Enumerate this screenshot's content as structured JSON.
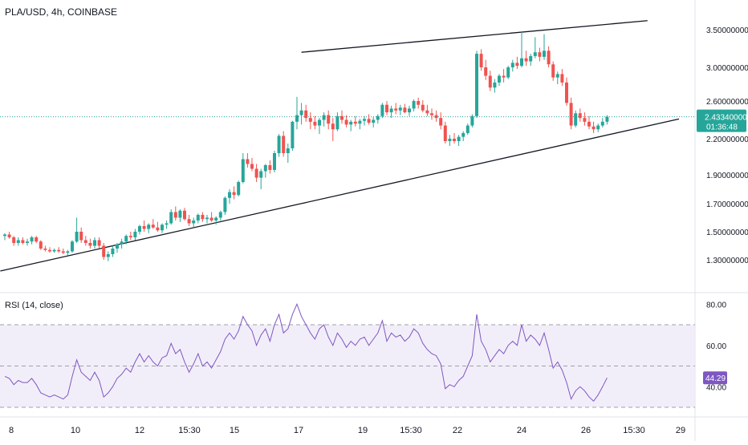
{
  "header": {
    "symbol_title": "PLA/USD, 4h, COINBASE"
  },
  "rsi": {
    "title": "RSI (14, close)",
    "axis_labels": [
      "80.00",
      "60.00",
      "40.00"
    ],
    "current_label": "44.29",
    "current_value": 44.29,
    "upper_band": 70,
    "middle_band": 50,
    "lower_band": 30,
    "line_color": "#7e57c2",
    "band_fill": "#ede7f6"
  },
  "price_badge": {
    "price": "2.43340000",
    "countdown": "01:36:48"
  },
  "colors": {
    "up": "#26a69a",
    "down": "#ef5350",
    "last_line": "#26a69a"
  },
  "chart_data": {
    "type": "candlestick",
    "title": "PLA/USD, 4h, COINBASE",
    "price_ticks": [
      3.5,
      3.0,
      2.6,
      2.2,
      1.9,
      1.7,
      1.5,
      1.3
    ],
    "price_tick_labels": [
      "3.50000000",
      "3.00000000",
      "2.60000000",
      "2.20000000",
      "1.90000000",
      "1.70000000",
      "1.50000000",
      "1.30000000"
    ],
    "time_labels": [
      "8",
      "10",
      "12",
      "15:30",
      "15",
      "17",
      "19",
      "15:30",
      "22",
      "24",
      "26",
      "15:30",
      "29"
    ],
    "last_price": 2.4334,
    "ohlc": [
      [
        1.47,
        1.49,
        1.44,
        1.48
      ],
      [
        1.48,
        1.5,
        1.45,
        1.46
      ],
      [
        1.46,
        1.47,
        1.4,
        1.42
      ],
      [
        1.42,
        1.46,
        1.4,
        1.44
      ],
      [
        1.44,
        1.46,
        1.41,
        1.42
      ],
      [
        1.42,
        1.45,
        1.4,
        1.43
      ],
      [
        1.43,
        1.47,
        1.41,
        1.46
      ],
      [
        1.46,
        1.47,
        1.42,
        1.43
      ],
      [
        1.43,
        1.44,
        1.37,
        1.38
      ],
      [
        1.38,
        1.4,
        1.36,
        1.37
      ],
      [
        1.37,
        1.39,
        1.35,
        1.36
      ],
      [
        1.36,
        1.38,
        1.35,
        1.37
      ],
      [
        1.37,
        1.39,
        1.35,
        1.36
      ],
      [
        1.36,
        1.38,
        1.34,
        1.35
      ],
      [
        1.35,
        1.37,
        1.33,
        1.36
      ],
      [
        1.36,
        1.44,
        1.35,
        1.43
      ],
      [
        1.43,
        1.6,
        1.42,
        1.5
      ],
      [
        1.5,
        1.53,
        1.42,
        1.44
      ],
      [
        1.44,
        1.47,
        1.4,
        1.42
      ],
      [
        1.42,
        1.45,
        1.38,
        1.4
      ],
      [
        1.4,
        1.46,
        1.38,
        1.44
      ],
      [
        1.44,
        1.46,
        1.38,
        1.4
      ],
      [
        1.4,
        1.42,
        1.3,
        1.32
      ],
      [
        1.32,
        1.36,
        1.29,
        1.34
      ],
      [
        1.34,
        1.4,
        1.32,
        1.38
      ],
      [
        1.38,
        1.42,
        1.35,
        1.41
      ],
      [
        1.41,
        1.45,
        1.38,
        1.43
      ],
      [
        1.43,
        1.48,
        1.41,
        1.47
      ],
      [
        1.47,
        1.5,
        1.44,
        1.46
      ],
      [
        1.46,
        1.52,
        1.44,
        1.5
      ],
      [
        1.5,
        1.55,
        1.48,
        1.54
      ],
      [
        1.54,
        1.58,
        1.5,
        1.52
      ],
      [
        1.52,
        1.56,
        1.49,
        1.55
      ],
      [
        1.55,
        1.59,
        1.52,
        1.53
      ],
      [
        1.53,
        1.57,
        1.5,
        1.51
      ],
      [
        1.51,
        1.56,
        1.49,
        1.55
      ],
      [
        1.55,
        1.58,
        1.52,
        1.56
      ],
      [
        1.56,
        1.66,
        1.55,
        1.64
      ],
      [
        1.64,
        1.68,
        1.58,
        1.6
      ],
      [
        1.6,
        1.66,
        1.57,
        1.65
      ],
      [
        1.65,
        1.67,
        1.58,
        1.59
      ],
      [
        1.59,
        1.62,
        1.54,
        1.56
      ],
      [
        1.56,
        1.6,
        1.53,
        1.58
      ],
      [
        1.58,
        1.63,
        1.56,
        1.62
      ],
      [
        1.62,
        1.64,
        1.57,
        1.59
      ],
      [
        1.59,
        1.62,
        1.56,
        1.6
      ],
      [
        1.6,
        1.64,
        1.57,
        1.58
      ],
      [
        1.58,
        1.61,
        1.55,
        1.6
      ],
      [
        1.6,
        1.65,
        1.58,
        1.64
      ],
      [
        1.64,
        1.75,
        1.62,
        1.74
      ],
      [
        1.74,
        1.8,
        1.7,
        1.78
      ],
      [
        1.78,
        1.82,
        1.73,
        1.76
      ],
      [
        1.76,
        1.86,
        1.75,
        1.85
      ],
      [
        1.85,
        2.08,
        1.84,
        2.03
      ],
      [
        2.03,
        2.08,
        1.96,
        1.99
      ],
      [
        1.99,
        2.04,
        1.93,
        1.95
      ],
      [
        1.95,
        1.99,
        1.85,
        1.88
      ],
      [
        1.88,
        1.95,
        1.8,
        1.93
      ],
      [
        1.93,
        1.99,
        1.88,
        1.98
      ],
      [
        1.98,
        2.02,
        1.91,
        1.94
      ],
      [
        1.94,
        2.1,
        1.92,
        2.08
      ],
      [
        2.08,
        2.25,
        2.05,
        2.23
      ],
      [
        2.23,
        2.28,
        2.05,
        2.08
      ],
      [
        2.08,
        2.16,
        2.0,
        2.12
      ],
      [
        2.12,
        2.39,
        2.1,
        2.38
      ],
      [
        2.38,
        2.65,
        2.3,
        2.45
      ],
      [
        2.45,
        2.58,
        2.35,
        2.5
      ],
      [
        2.5,
        2.56,
        2.38,
        2.42
      ],
      [
        2.42,
        2.48,
        2.3,
        2.38
      ],
      [
        2.38,
        2.44,
        2.3,
        2.34
      ],
      [
        2.34,
        2.42,
        2.25,
        2.4
      ],
      [
        2.4,
        2.48,
        2.33,
        2.45
      ],
      [
        2.45,
        2.5,
        2.3,
        2.36
      ],
      [
        2.36,
        2.42,
        2.18,
        2.3
      ],
      [
        2.3,
        2.48,
        2.28,
        2.44
      ],
      [
        2.44,
        2.5,
        2.36,
        2.4
      ],
      [
        2.4,
        2.45,
        2.32,
        2.35
      ],
      [
        2.35,
        2.4,
        2.28,
        2.38
      ],
      [
        2.38,
        2.44,
        2.33,
        2.36
      ],
      [
        2.36,
        2.41,
        2.3,
        2.39
      ],
      [
        2.39,
        2.44,
        2.34,
        2.41
      ],
      [
        2.41,
        2.46,
        2.35,
        2.37
      ],
      [
        2.37,
        2.43,
        2.32,
        2.4
      ],
      [
        2.4,
        2.46,
        2.36,
        2.44
      ],
      [
        2.44,
        2.58,
        2.42,
        2.56
      ],
      [
        2.56,
        2.6,
        2.45,
        2.48
      ],
      [
        2.48,
        2.55,
        2.42,
        2.52
      ],
      [
        2.52,
        2.58,
        2.46,
        2.5
      ],
      [
        2.5,
        2.56,
        2.45,
        2.53
      ],
      [
        2.53,
        2.57,
        2.47,
        2.48
      ],
      [
        2.48,
        2.55,
        2.44,
        2.52
      ],
      [
        2.52,
        2.62,
        2.49,
        2.6
      ],
      [
        2.6,
        2.64,
        2.52,
        2.56
      ],
      [
        2.56,
        2.61,
        2.48,
        2.5
      ],
      [
        2.5,
        2.56,
        2.44,
        2.47
      ],
      [
        2.47,
        2.52,
        2.4,
        2.45
      ],
      [
        2.45,
        2.5,
        2.38,
        2.42
      ],
      [
        2.42,
        2.48,
        2.3,
        2.34
      ],
      [
        2.34,
        2.38,
        2.16,
        2.18
      ],
      [
        2.18,
        2.24,
        2.14,
        2.2
      ],
      [
        2.2,
        2.26,
        2.16,
        2.18
      ],
      [
        2.18,
        2.24,
        2.14,
        2.22
      ],
      [
        2.22,
        2.28,
        2.18,
        2.26
      ],
      [
        2.26,
        2.36,
        2.24,
        2.34
      ],
      [
        2.34,
        2.46,
        2.32,
        2.44
      ],
      [
        2.44,
        3.22,
        2.42,
        3.18
      ],
      [
        3.18,
        3.24,
        2.96,
        3.0
      ],
      [
        3.0,
        3.1,
        2.85,
        2.9
      ],
      [
        2.9,
        2.96,
        2.72,
        2.76
      ],
      [
        2.76,
        2.86,
        2.7,
        2.82
      ],
      [
        2.82,
        2.92,
        2.78,
        2.9
      ],
      [
        2.9,
        2.98,
        2.82,
        2.88
      ],
      [
        2.88,
        3.02,
        2.86,
        3.0
      ],
      [
        3.0,
        3.1,
        2.95,
        3.06
      ],
      [
        3.06,
        3.14,
        2.98,
        3.02
      ],
      [
        3.02,
        3.48,
        3.0,
        3.12
      ],
      [
        3.12,
        3.22,
        3.02,
        3.08
      ],
      [
        3.08,
        3.18,
        3.02,
        3.15
      ],
      [
        3.15,
        3.4,
        3.12,
        3.2
      ],
      [
        3.2,
        3.26,
        3.08,
        3.14
      ],
      [
        3.14,
        3.44,
        3.1,
        3.22
      ],
      [
        3.22,
        3.28,
        3.0,
        3.04
      ],
      [
        3.04,
        3.08,
        2.84,
        2.88
      ],
      [
        2.88,
        2.95,
        2.8,
        2.92
      ],
      [
        2.92,
        2.98,
        2.78,
        2.82
      ],
      [
        2.82,
        2.88,
        2.55,
        2.58
      ],
      [
        2.58,
        2.64,
        2.3,
        2.34
      ],
      [
        2.34,
        2.5,
        2.32,
        2.47
      ],
      [
        2.47,
        2.52,
        2.38,
        2.42
      ],
      [
        2.42,
        2.48,
        2.34,
        2.38
      ],
      [
        2.38,
        2.44,
        2.3,
        2.33
      ],
      [
        2.33,
        2.38,
        2.26,
        2.3
      ],
      [
        2.3,
        2.36,
        2.27,
        2.34
      ],
      [
        2.34,
        2.42,
        2.32,
        2.38
      ],
      [
        2.38,
        2.45,
        2.35,
        2.4334
      ]
    ],
    "rsi_values": [
      45,
      44,
      41,
      43,
      42,
      42,
      44,
      41,
      37,
      36,
      35,
      36,
      35,
      34,
      36,
      45,
      53,
      47,
      45,
      43,
      47,
      43,
      35,
      37,
      40,
      44,
      46,
      49,
      47,
      52,
      56,
      52,
      55,
      52,
      50,
      54,
      55,
      61,
      56,
      58,
      52,
      47,
      51,
      56,
      50,
      52,
      49,
      53,
      57,
      63,
      66,
      63,
      67,
      74,
      70,
      67,
      60,
      65,
      68,
      62,
      70,
      75,
      66,
      68,
      75,
      80,
      74,
      70,
      66,
      63,
      68,
      70,
      64,
      60,
      66,
      63,
      59,
      62,
      60,
      63,
      64,
      60,
      63,
      66,
      72,
      62,
      66,
      64,
      65,
      62,
      64,
      68,
      66,
      61,
      58,
      56,
      55,
      51,
      39,
      41,
      40,
      43,
      45,
      50,
      55,
      75,
      62,
      58,
      52,
      55,
      58,
      56,
      60,
      62,
      60,
      70,
      62,
      65,
      63,
      60,
      66,
      58,
      49,
      52,
      48,
      42,
      34,
      38,
      40,
      38,
      35,
      33,
      36,
      40,
      44.29
    ],
    "trendlines": [
      {
        "name": "upper-resistance",
        "from": [
          66,
          3.2
        ],
        "to": [
          143,
          3.62
        ]
      },
      {
        "name": "lower-support",
        "from": [
          -1,
          1.22
        ],
        "to": [
          150,
          2.41
        ]
      }
    ]
  }
}
